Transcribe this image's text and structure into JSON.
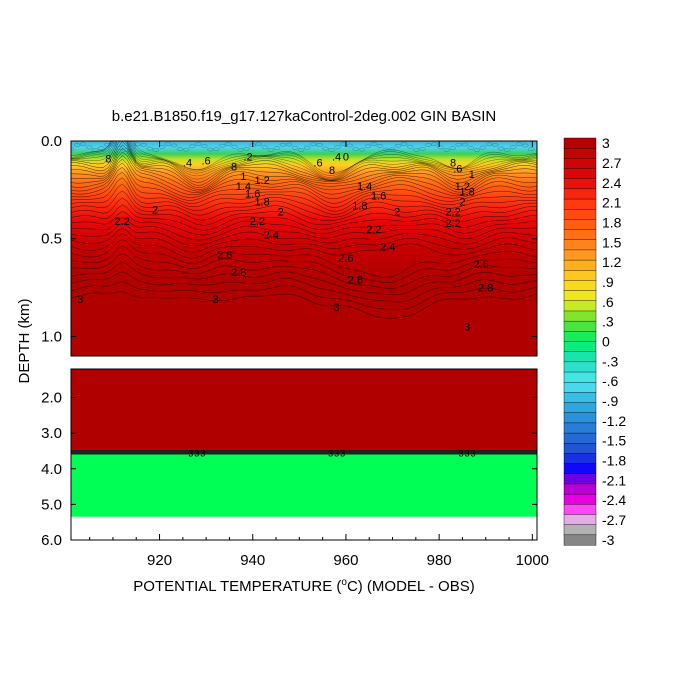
{
  "chart_data": {
    "type": "heatmap",
    "title": "b.e21.B1850.f19_g17.127kaControl-2deg.002 GIN BASIN",
    "xlabel_prefix": "POTENTIAL TEMPERATURE (",
    "xlabel_degree": "o",
    "xlabel_suffix": "C) (MODEL - OBS)",
    "ylabel": "DEPTH (km)",
    "xlim": [
      901,
      1001
    ],
    "x_ticks": [
      920,
      940,
      960,
      980,
      1000
    ],
    "x_tick_labels": [
      "920",
      "940",
      "960",
      "980",
      "1000"
    ],
    "upper_panel": {
      "ylim": [
        0.0,
        1.1
      ],
      "y_ticks": [
        0.0,
        0.5,
        1.0
      ],
      "y_tick_labels": [
        "0.0",
        "0.5",
        "1.0"
      ]
    },
    "lower_panel": {
      "ylim": [
        1.2,
        6.0
      ],
      "y_ticks": [
        2.0,
        3.0,
        4.0,
        5.0,
        6.0
      ],
      "y_tick_labels": [
        "2.0",
        "3.0",
        "4.0",
        "5.0",
        "6.0"
      ],
      "value_above_band": 3.0,
      "band_depth": [
        3.45,
        3.6
      ],
      "value_below_band": 0.2,
      "missing_below_depth": 5.35
    },
    "contour_labels": [
      {
        "text": "3",
        "x": 903,
        "y": 0.83
      },
      {
        "text": "3",
        "x": 932,
        "y": 0.83
      },
      {
        "text": "3",
        "x": 958,
        "y": 0.87
      },
      {
        "text": "3",
        "x": 986,
        "y": 0.97
      },
      {
        "text": "2.8",
        "x": 937,
        "y": 0.69
      },
      {
        "text": "2.8",
        "x": 962,
        "y": 0.73
      },
      {
        "text": "2.8",
        "x": 990,
        "y": 0.77
      },
      {
        "text": "2.6",
        "x": 934,
        "y": 0.6
      },
      {
        "text": "2.6",
        "x": 960,
        "y": 0.62
      },
      {
        "text": "2.6",
        "x": 989,
        "y": 0.65
      },
      {
        "text": "2.4",
        "x": 944,
        "y": 0.5
      },
      {
        "text": "2.4",
        "x": 969,
        "y": 0.56
      },
      {
        "text": "2.2",
        "x": 941,
        "y": 0.43
      },
      {
        "text": "2.2",
        "x": 966,
        "y": 0.47
      },
      {
        "text": "2.2",
        "x": 983,
        "y": 0.44
      },
      {
        "text": "2",
        "x": 919,
        "y": 0.37
      },
      {
        "text": "2",
        "x": 946,
        "y": 0.38
      },
      {
        "text": "2",
        "x": 971,
        "y": 0.38
      },
      {
        "text": "1.8",
        "x": 942,
        "y": 0.33
      },
      {
        "text": "1.8",
        "x": 963,
        "y": 0.35
      },
      {
        "text": "1.6",
        "x": 940,
        "y": 0.29
      },
      {
        "text": "1.6",
        "x": 967,
        "y": 0.3
      },
      {
        "text": "1.4",
        "x": 938,
        "y": 0.25
      },
      {
        "text": "1.4",
        "x": 964,
        "y": 0.25
      },
      {
        "text": "1.2",
        "x": 942,
        "y": 0.22
      },
      {
        "text": "1.2",
        "x": 985,
        "y": 0.25
      },
      {
        "text": "1",
        "x": 938,
        "y": 0.2
      },
      {
        "text": "1",
        "x": 987,
        "y": 0.19
      },
      {
        "text": "8",
        "x": 909,
        "y": 0.11
      },
      {
        "text": "8",
        "x": 936,
        "y": 0.15
      },
      {
        "text": "8",
        "x": 957,
        "y": 0.17
      },
      {
        "text": "8",
        "x": 983,
        "y": 0.13
      },
      {
        "text": ".6",
        "x": 930,
        "y": 0.12
      },
      {
        "text": ".6",
        "x": 954,
        "y": 0.13
      },
      {
        "text": ".6",
        "x": 984,
        "y": 0.16
      },
      {
        "text": ".4",
        "x": 926,
        "y": 0.13
      },
      {
        "text": ".4",
        "x": 958,
        "y": 0.1
      },
      {
        "text": ".2",
        "x": 939,
        "y": 0.1
      },
      {
        "text": "0",
        "x": 960,
        "y": 0.1
      },
      {
        "text": "2.2",
        "x": 912,
        "y": 0.43
      },
      {
        "text": "2.2",
        "x": 983,
        "y": 0.38
      },
      {
        "text": "2",
        "x": 985,
        "y": 0.33
      },
      {
        "text": "1.8",
        "x": 986,
        "y": 0.28
      }
    ],
    "colorbar": {
      "min": -3,
      "max": 3,
      "step": 0.15,
      "tick_labels": [
        "3",
        "2.7",
        "2.4",
        "2.1",
        "1.8",
        "1.5",
        "1.2",
        ".9",
        ".6",
        ".3",
        "0",
        "-.3",
        "-.6",
        "-.9",
        "-1.2",
        "-1.5",
        "-1.8",
        "-2.1",
        "-2.4",
        "-2.7",
        "-3"
      ],
      "placement": "right"
    },
    "colors": {
      "warm": "#b00000",
      "band": "#202020",
      "deep": "#00ff55",
      "missing": "#ffffff"
    }
  }
}
